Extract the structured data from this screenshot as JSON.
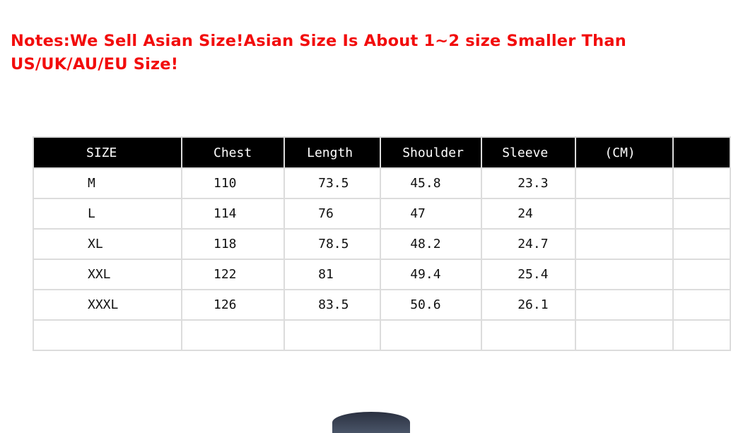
{
  "notes": "Notes:We Sell Asian Size!Asian Size Is About 1~2 size Smaller Than US/UK/AU/EU Size!",
  "table": {
    "headers": [
      "SIZE",
      "Chest",
      "Length",
      "Shoulder",
      "Sleeve",
      "(CM)",
      ""
    ],
    "rows": [
      [
        "M",
        "110",
        "73.5",
        "45.8",
        "23.3",
        "",
        ""
      ],
      [
        "L",
        "114",
        "76",
        "47",
        "24",
        "",
        ""
      ],
      [
        "XL",
        "118",
        "78.5",
        "48.2",
        "24.7",
        "",
        ""
      ],
      [
        "XXL",
        "122",
        "81",
        "49.4",
        "25.4",
        "",
        ""
      ],
      [
        "XXXL",
        "126",
        "83.5",
        "50.6",
        "26.1",
        "",
        ""
      ],
      [
        "",
        "",
        "",
        "",
        "",
        "",
        ""
      ]
    ]
  }
}
